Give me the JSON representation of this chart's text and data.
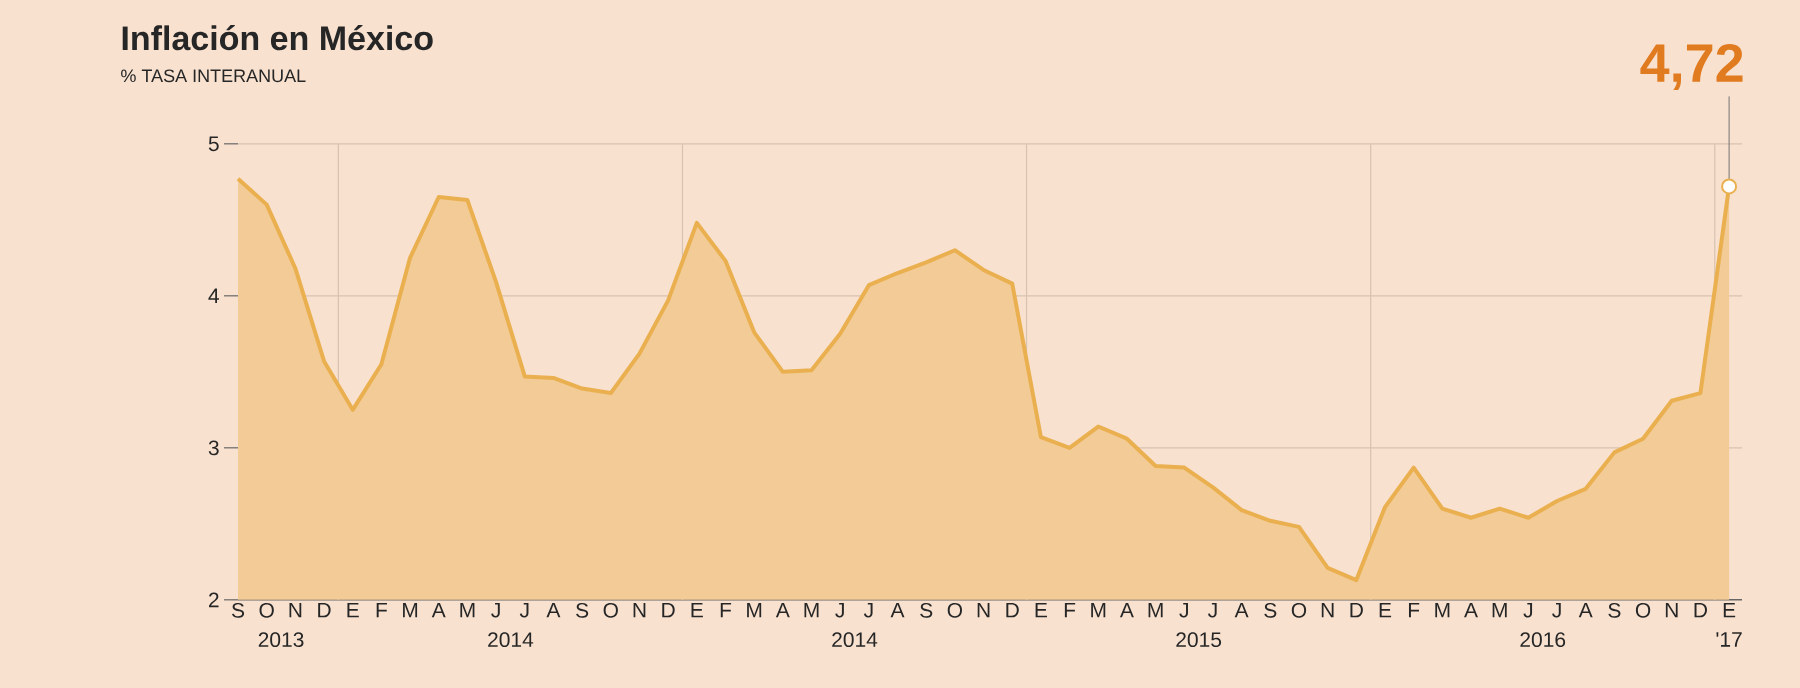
{
  "chart_data": {
    "type": "area",
    "title": "Inflación en México",
    "subtitle": "% TASA INTERANUAL",
    "categories": [
      "S",
      "O",
      "N",
      "D",
      "E",
      "F",
      "M",
      "A",
      "M",
      "J",
      "J",
      "A",
      "S",
      "O",
      "N",
      "D",
      "E",
      "F",
      "M",
      "A",
      "M",
      "J",
      "J",
      "A",
      "S",
      "O",
      "N",
      "D",
      "E",
      "F",
      "M",
      "A",
      "M",
      "J",
      "J",
      "A",
      "S",
      "O",
      "N",
      "D",
      "E",
      "F",
      "M",
      "A",
      "M",
      "J",
      "J",
      "A",
      "S",
      "O",
      "N",
      "D",
      "E"
    ],
    "values": [
      4.77,
      4.6,
      4.18,
      3.57,
      3.25,
      3.55,
      4.25,
      4.65,
      4.63,
      4.09,
      3.47,
      3.46,
      3.39,
      3.36,
      3.62,
      3.97,
      4.48,
      4.23,
      3.76,
      3.5,
      3.51,
      3.75,
      4.07,
      4.15,
      4.22,
      4.3,
      4.17,
      4.08,
      3.07,
      3.0,
      3.14,
      3.06,
      2.88,
      2.87,
      2.74,
      2.59,
      2.52,
      2.48,
      2.21,
      2.13,
      2.61,
      2.87,
      2.6,
      2.54,
      2.6,
      2.54,
      2.65,
      2.73,
      2.97,
      3.06,
      3.31,
      3.36,
      4.72
    ],
    "value_labels": [
      null,
      null,
      null,
      null,
      null,
      null,
      null,
      null,
      null,
      null,
      null,
      null,
      null,
      null,
      null,
      null,
      null,
      null,
      null,
      null,
      null,
      null,
      null,
      null,
      null,
      null,
      null,
      null,
      null,
      null,
      null,
      null,
      null,
      null,
      null,
      null,
      null,
      null,
      null,
      null,
      null,
      null,
      null,
      null,
      null,
      null,
      null,
      null,
      null,
      null,
      null,
      null,
      "4,72"
    ],
    "color": "#eab050",
    "ylim": [
      2,
      5
    ],
    "yticks": [
      2,
      3,
      4,
      5
    ],
    "grid": true,
    "annotations": [
      "2013",
      "2014",
      "2014",
      "2015",
      "2016",
      "'17"
    ]
  }
}
